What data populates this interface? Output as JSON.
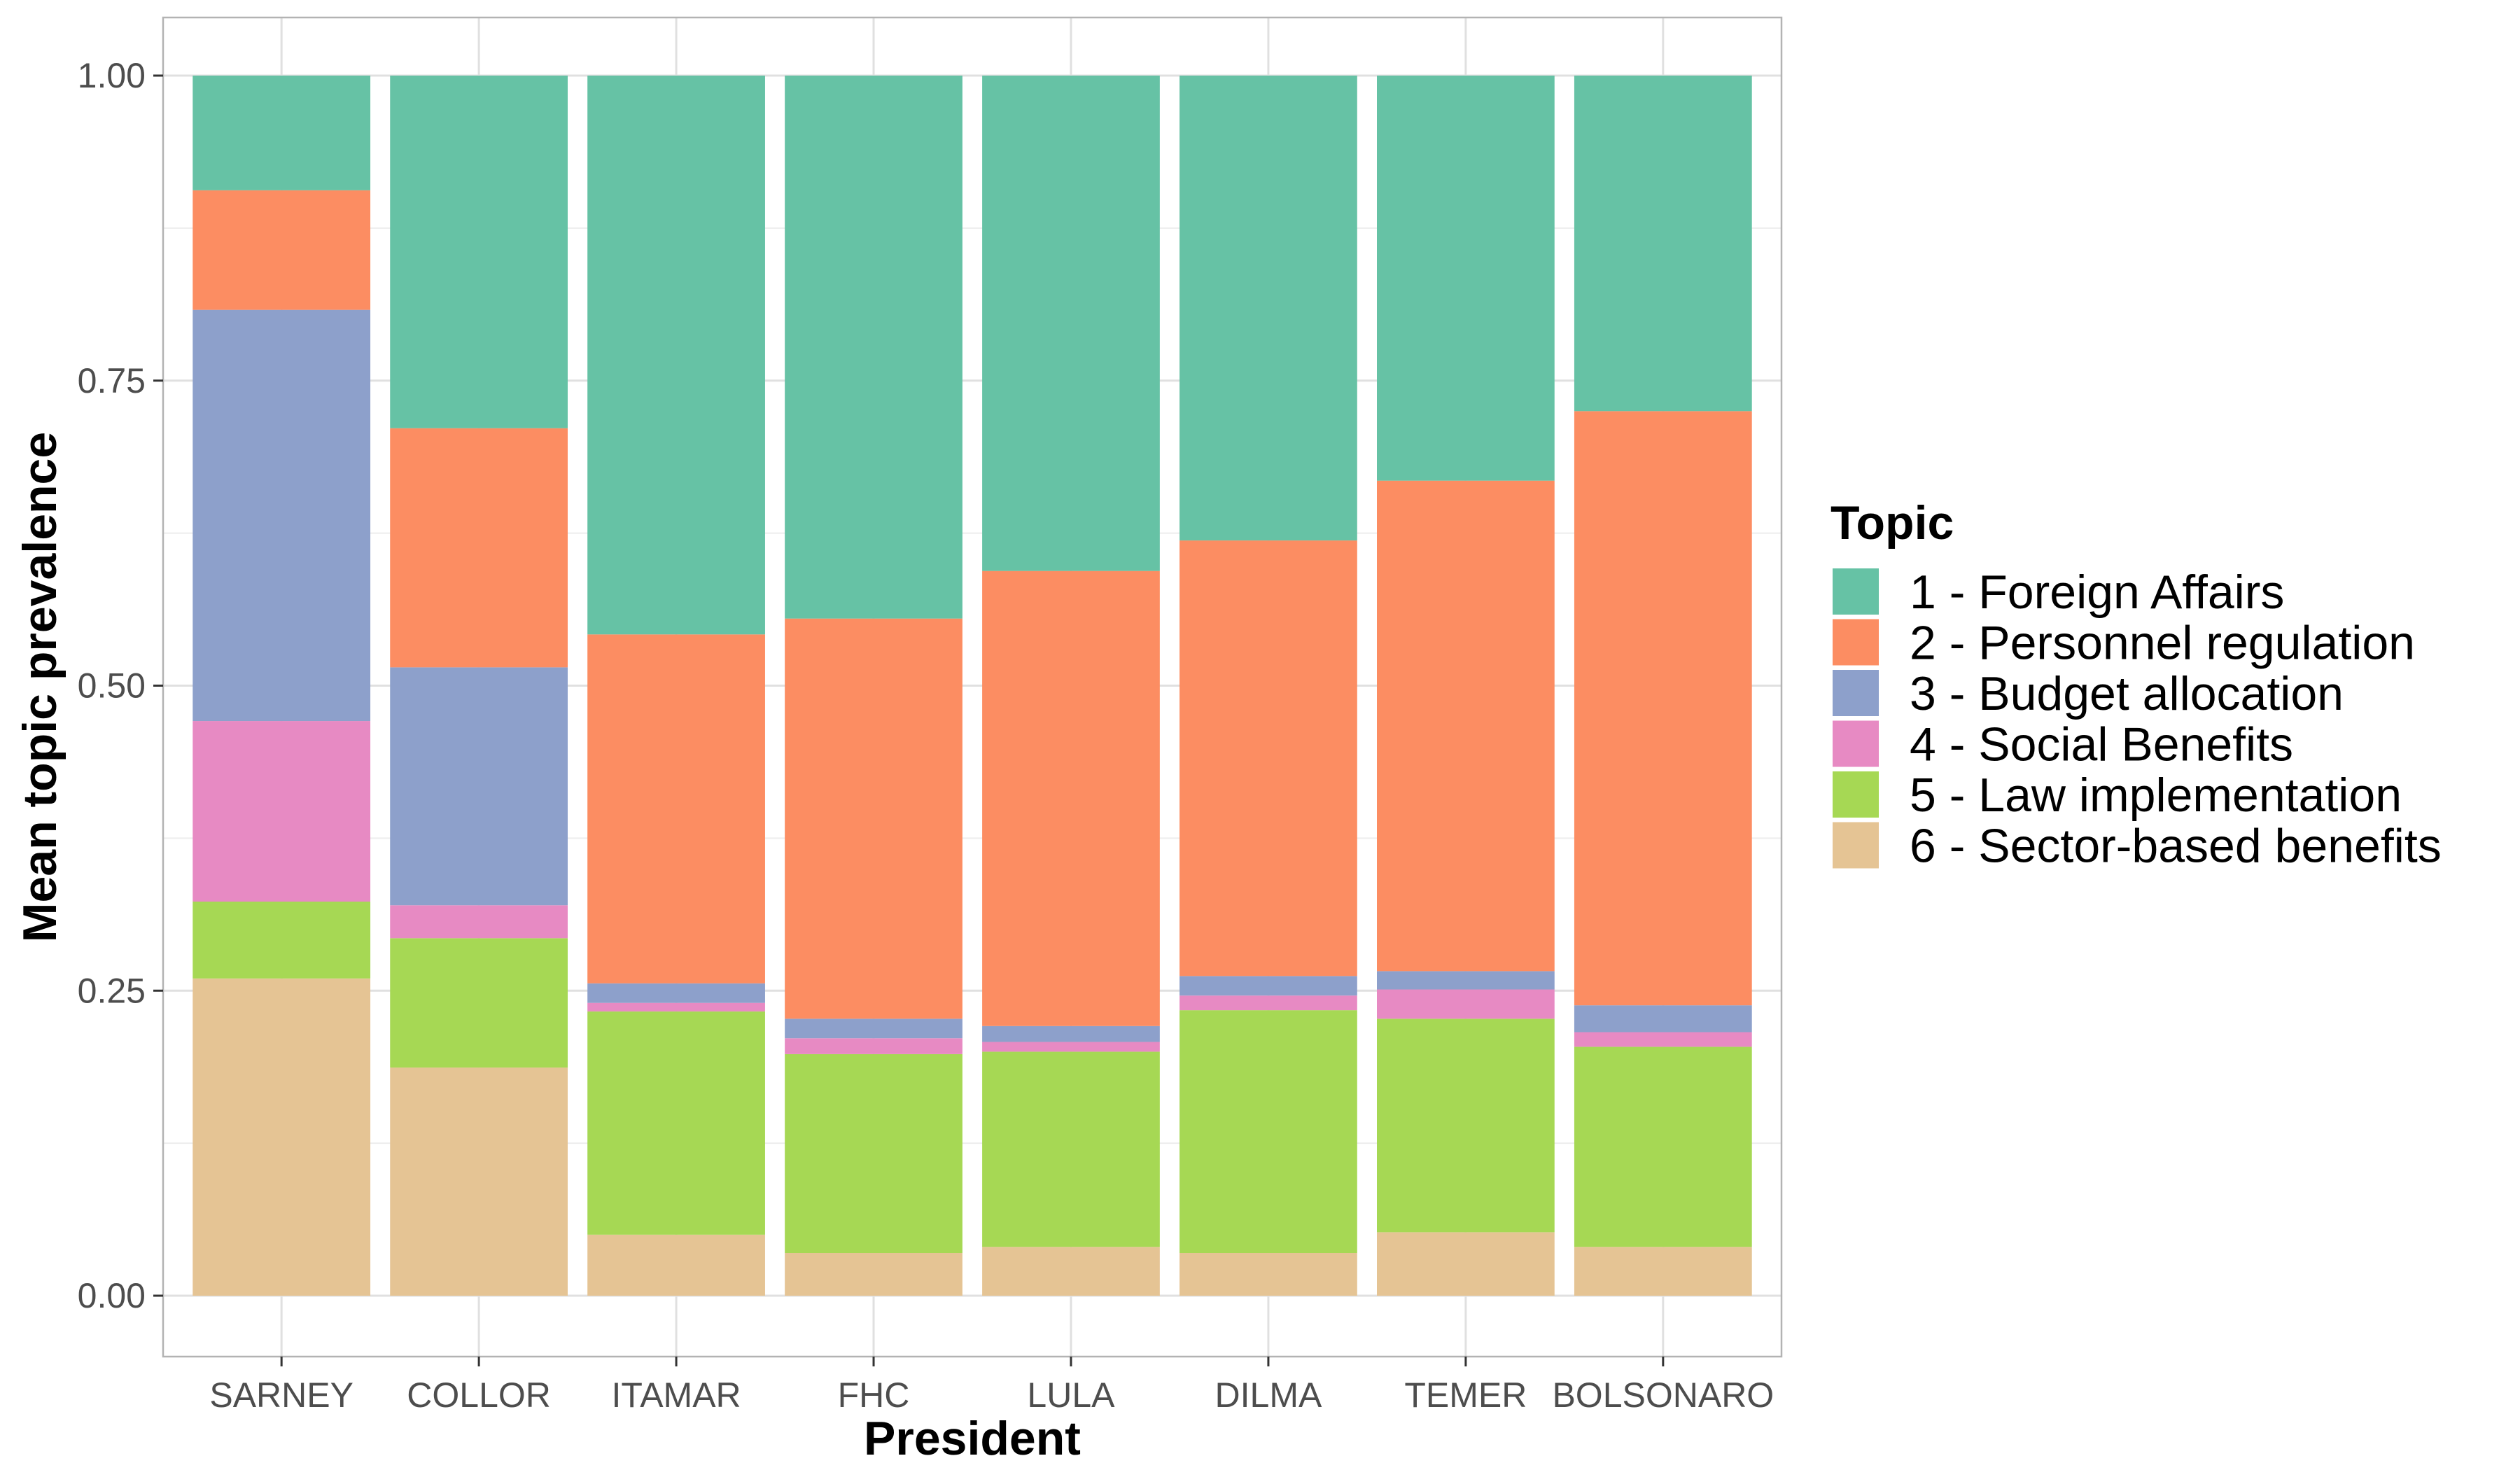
{
  "chart_data": {
    "type": "bar",
    "stacked": true,
    "categories": [
      "SARNEY",
      "COLLOR",
      "ITAMAR",
      "FHC",
      "LULA",
      "DILMA",
      "TEMER",
      "BOLSONARO"
    ],
    "xlabel": "President",
    "ylabel": "Mean topic prevalence",
    "ylim": [
      0,
      1
    ],
    "y_ticks": [
      "0.00",
      "0.25",
      "0.50",
      "0.75",
      "1.00"
    ],
    "grid": true,
    "legend": {
      "title": "Topic",
      "placement": "right"
    },
    "series": [
      {
        "name": "6 - Sector-based benefits",
        "color": "#E5C494",
        "values": [
          0.26,
          0.187,
          0.05,
          0.035,
          0.04,
          0.035,
          0.052,
          0.04
        ]
      },
      {
        "name": "5 - Law implementation",
        "color": "#A6D854",
        "values": [
          0.063,
          0.106,
          0.183,
          0.163,
          0.16,
          0.199,
          0.175,
          0.164
        ]
      },
      {
        "name": "4 - Social Benefits",
        "color": "#E78AC3",
        "values": [
          0.148,
          0.027,
          0.007,
          0.013,
          0.008,
          0.012,
          0.024,
          0.012
        ]
      },
      {
        "name": "3 - Budget allocation",
        "color": "#8DA0CB",
        "values": [
          0.337,
          0.195,
          0.016,
          0.016,
          0.013,
          0.016,
          0.015,
          0.022
        ]
      },
      {
        "name": "2 - Personnel regulation",
        "color": "#FC8D62",
        "values": [
          0.098,
          0.196,
          0.286,
          0.328,
          0.373,
          0.357,
          0.402,
          0.487
        ]
      },
      {
        "name": "1 - Foreign Affairs",
        "color": "#66C2A5",
        "values": [
          0.094,
          0.289,
          0.458,
          0.445,
          0.406,
          0.381,
          0.332,
          0.275
        ]
      }
    ]
  }
}
